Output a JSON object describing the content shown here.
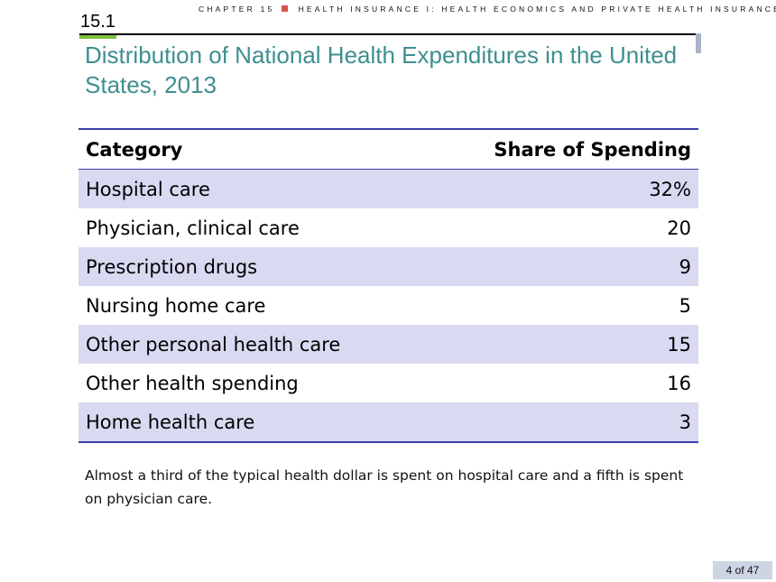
{
  "header": {
    "chapter_label": "CHAPTER 15",
    "chapter_subtitle": "HEALTH INSURANCE I: HEALTH ECONOMICS AND PRIVATE HEALTH INSURANCE",
    "section_number": "15.1"
  },
  "slide": {
    "title": "Distribution of National Health Expenditures in the United States, 2013"
  },
  "table": {
    "columns": [
      "Category",
      "Share of Spending"
    ],
    "rows": [
      {
        "category": "Hospital care",
        "share": "32%"
      },
      {
        "category": "Physician, clinical care",
        "share": "20"
      },
      {
        "category": "Prescription drugs",
        "share": "9"
      },
      {
        "category": "Nursing home care",
        "share": "5"
      },
      {
        "category": "Other personal health care",
        "share": "15"
      },
      {
        "category": "Other health spending",
        "share": "16"
      },
      {
        "category": "Home health care",
        "share": "3"
      }
    ]
  },
  "note": "Almost a third of the typical health dollar is spent on hospital care and a fifth is spent on physician care.",
  "footer": {
    "page_indicator": "4 of 47"
  },
  "colors": {
    "title": "#3e8f8f",
    "table_rule": "#3a3fa8",
    "row_shade": "#d9d9f2",
    "accent_square": "#d9534f",
    "section_underline": "#7fbf3f"
  }
}
